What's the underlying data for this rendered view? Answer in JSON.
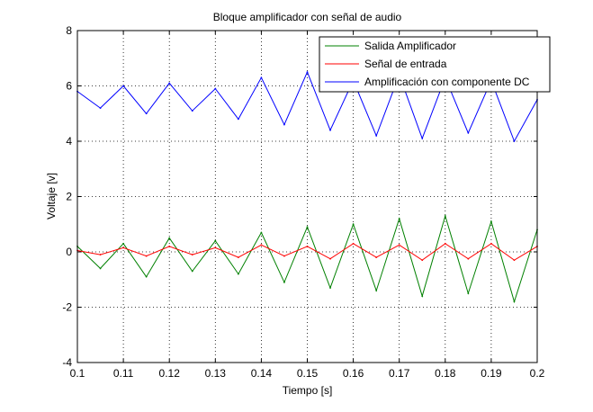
{
  "chart_data": {
    "type": "line",
    "title": "Bloque amplificador con señal de audio",
    "xlabel": "Tiempo [s]",
    "ylabel": "Voltaje [v]",
    "xlim": [
      0.1,
      0.2
    ],
    "ylim": [
      -4,
      8
    ],
    "x_ticks": [
      "0.1",
      "0.11",
      "0.12",
      "0.13",
      "0.14",
      "0.15",
      "0.16",
      "0.17",
      "0.18",
      "0.19",
      "0.2"
    ],
    "y_ticks": [
      "-4",
      "-2",
      "0",
      "2",
      "4",
      "6",
      "8"
    ],
    "grid": true,
    "legend_position": "top-right",
    "x": [
      0.1,
      0.105,
      0.11,
      0.115,
      0.12,
      0.125,
      0.13,
      0.135,
      0.14,
      0.145,
      0.15,
      0.155,
      0.16,
      0.165,
      0.17,
      0.175,
      0.18,
      0.185,
      0.19,
      0.195,
      0.2
    ],
    "series": [
      {
        "name": "Salida Amplificador",
        "color": "#008000",
        "values": [
          0.2,
          -0.6,
          0.3,
          -0.9,
          0.5,
          -0.7,
          0.4,
          -0.8,
          0.7,
          -1.1,
          0.9,
          -1.3,
          1.0,
          -1.4,
          1.2,
          -1.6,
          1.3,
          -1.5,
          1.1,
          -1.8,
          0.8
        ]
      },
      {
        "name": "Señal de entrada",
        "color": "#ff0000",
        "values": [
          0.05,
          -0.1,
          0.15,
          -0.15,
          0.2,
          -0.1,
          0.15,
          -0.2,
          0.25,
          -0.15,
          0.2,
          -0.25,
          0.3,
          -0.2,
          0.25,
          -0.3,
          0.3,
          -0.25,
          0.3,
          -0.3,
          0.2
        ]
      },
      {
        "name": "Amplificación con componente DC",
        "color": "#0000ff",
        "values": [
          5.8,
          5.2,
          6.0,
          5.0,
          6.1,
          5.1,
          5.9,
          4.8,
          6.3,
          4.6,
          6.5,
          4.4,
          6.2,
          4.2,
          6.4,
          4.1,
          6.3,
          4.3,
          6.2,
          4.0,
          5.5
        ]
      }
    ]
  }
}
